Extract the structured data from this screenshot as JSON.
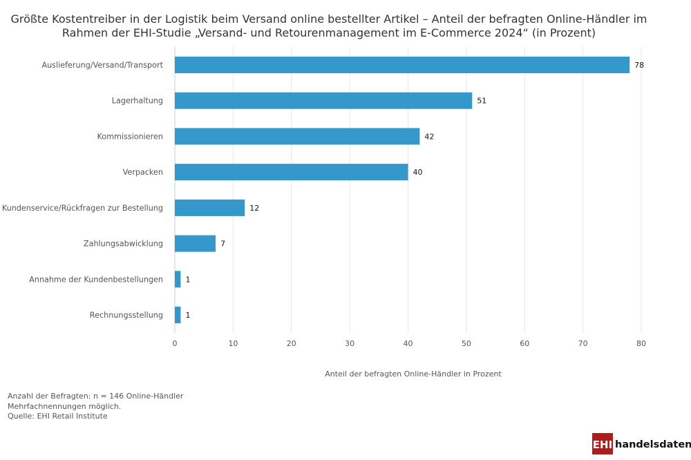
{
  "chart_data": {
    "type": "bar",
    "orientation": "horizontal",
    "title": [
      "Größte Kostentreiber in der Logistik beim Versand online bestellter Artikel – Anteil der befragten Online-Händler im",
      "Rahmen der EHI-Studie „Versand- und Retourenmanagement im E-Commerce 2024“ (in Prozent)"
    ],
    "categories": [
      "Auslieferung/Versand/Transport",
      "Lagerhaltung",
      "Kommissionieren",
      "Verpacken",
      "Kundenservice/Rückfragen zur Bestellung",
      "Zahlungsabwicklung",
      "Annahme der Kundenbestellungen",
      "Rechnungsstellung"
    ],
    "values": [
      78,
      51,
      42,
      40,
      12,
      7,
      1,
      1
    ],
    "xlabel": "Anteil der befragten Online-Händler in Prozent",
    "ylabel": "",
    "xlim": [
      0,
      80
    ],
    "xticks": [
      0,
      10,
      20,
      30,
      40,
      50,
      60,
      70,
      80
    ],
    "grid": "vertical",
    "bar_color": "#3498cb",
    "data_labels": true
  },
  "notes": [
    "Anzahl der Befragten: n = 146 Online-Händler",
    "Mehrfachnennungen möglich.",
    "Quelle: EHI Retail Institute"
  ],
  "logo": {
    "box_text": "EHI",
    "text": "handelsdaten.de",
    "color": "#b01c1c"
  }
}
